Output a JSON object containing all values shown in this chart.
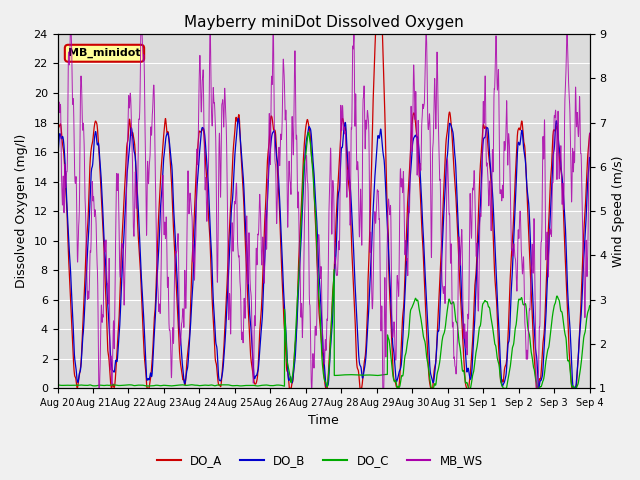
{
  "title": "Mayberry miniDot Dissolved Oxygen",
  "xlabel": "Time",
  "ylabel_left": "Dissolved Oxygen (mg/l)",
  "ylabel_right": "Wind Speed (m/s)",
  "ylim_left": [
    0,
    24
  ],
  "ylim_right": [
    1.0,
    9.0
  ],
  "yticks_left": [
    0,
    2,
    4,
    6,
    8,
    10,
    12,
    14,
    16,
    18,
    20,
    22,
    24
  ],
  "yticks_right": [
    1.0,
    2.0,
    3.0,
    4.0,
    5.0,
    6.0,
    7.0,
    8.0,
    9.0
  ],
  "colors": {
    "DO_A": "#cc0000",
    "DO_B": "#0000cc",
    "DO_C": "#00aa00",
    "MB_WS": "#aa00aa"
  },
  "legend_label": "MB_minidot",
  "legend_box_facecolor": "#ffff99",
  "legend_box_edgecolor": "#cc0000",
  "plot_bg_color": "#dcdcdc",
  "fig_bg_color": "#f0f0f0",
  "grid_color": "#ffffff",
  "title_fontsize": 11,
  "axis_label_fontsize": 9,
  "tick_fontsize": 8,
  "tick_labels": [
    "Aug 20",
    "Aug 21",
    "Aug 22",
    "Aug 23",
    "Aug 24",
    "Aug 25",
    "Aug 26",
    "Aug 27",
    "Aug 28",
    "Aug 29",
    "Aug 30",
    "Aug 31",
    "Sep 1",
    "Sep 2",
    "Sep 3",
    "Sep 4"
  ]
}
